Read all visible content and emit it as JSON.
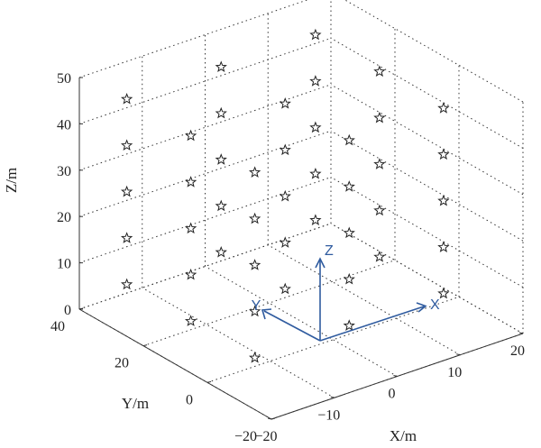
{
  "chart_data": {
    "type": "scatter",
    "dimensions": 3,
    "title": "",
    "xlabel": "X/m",
    "ylabel": "Y/m",
    "zlabel": "Z/m",
    "xlim": [
      -20,
      20
    ],
    "ylim": [
      -20,
      40
    ],
    "zlim": [
      0,
      50
    ],
    "xticks": [
      "−20",
      "−10",
      "0",
      "10",
      "20"
    ],
    "yticks": [
      "−20",
      "0",
      "20",
      "40"
    ],
    "zticks": [
      "0",
      "10",
      "20",
      "30",
      "40",
      "50"
    ],
    "grid": true,
    "marker": "star",
    "series": [
      {
        "x": [
          -15,
          -15,
          -15,
          -15,
          -15,
          -15,
          -15,
          -15,
          -15,
          -15,
          -15,
          -15,
          -15,
          -15,
          -15,
          0,
          0,
          0,
          0,
          0,
          0,
          0,
          0,
          0,
          0,
          0,
          0,
          0,
          0,
          0,
          15,
          15,
          15,
          15,
          15,
          15,
          15,
          15,
          15,
          15,
          15,
          15,
          15,
          15,
          15
        ],
        "y": [
          35,
          35,
          35,
          35,
          35,
          15,
          15,
          15,
          15,
          15,
          -5,
          -5,
          -5,
          -5,
          -5,
          35,
          35,
          35,
          35,
          35,
          15,
          15,
          15,
          15,
          15,
          -5,
          -5,
          -5,
          -5,
          -5,
          35,
          35,
          35,
          35,
          35,
          15,
          15,
          15,
          15,
          15,
          -5,
          -5,
          -5,
          -5,
          -5
        ],
        "z": [
          5,
          15,
          25,
          35,
          45,
          5,
          15,
          25,
          35,
          45,
          5,
          15,
          25,
          35,
          45,
          5,
          15,
          25,
          35,
          45,
          5,
          15,
          25,
          35,
          45,
          5,
          15,
          25,
          35,
          45,
          5,
          15,
          25,
          35,
          45,
          5,
          15,
          25,
          35,
          45,
          5,
          15,
          25,
          35,
          45
        ]
      }
    ],
    "frame_axes": {
      "x": "X",
      "y": "Y",
      "z": "Z",
      "color": "#2f5b9f"
    }
  }
}
